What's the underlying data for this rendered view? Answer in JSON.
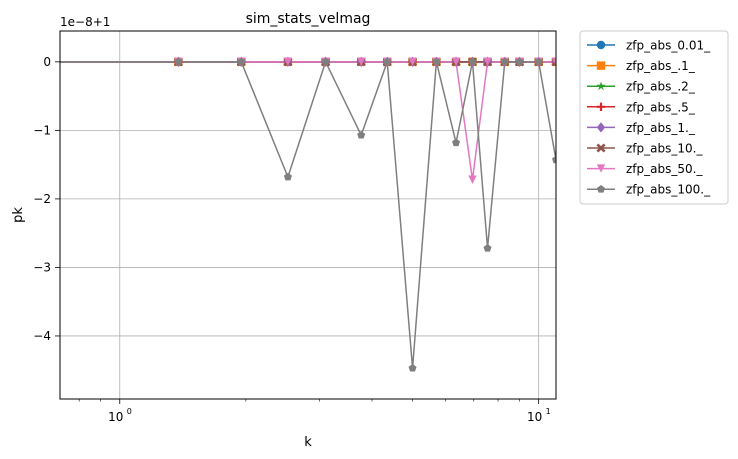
{
  "chart_data": {
    "type": "line",
    "title": "sim_stats_velmag",
    "xlabel": "k",
    "ylabel": "pk",
    "offset_label": "1e−8+1",
    "xscale": "log",
    "xlim": [
      0.72,
      11.0
    ],
    "ylim": [
      -4.92,
      0.45
    ],
    "grid": true,
    "legend_position": "outside-right",
    "x_ticks": [
      {
        "value": 1,
        "label": "10",
        "exp": "0"
      },
      {
        "value": 10,
        "label": "10",
        "exp": "1"
      }
    ],
    "y_ticks": [
      {
        "value": 0,
        "label": "0"
      },
      {
        "value": -1,
        "label": "−1"
      },
      {
        "value": -2,
        "label": "−2"
      },
      {
        "value": -3,
        "label": "−3"
      },
      {
        "value": -4,
        "label": "−4"
      }
    ],
    "x": [
      0.7,
      1.38,
      1.95,
      2.52,
      3.1,
      3.77,
      4.35,
      5.0,
      5.7,
      6.35,
      6.95,
      7.55,
      8.3,
      9.0,
      10.0,
      11.0
    ],
    "series": [
      {
        "name": "zfp_abs_0.01_",
        "color": "#1f77b4",
        "marker": "circle",
        "values": [
          0,
          0,
          0,
          0,
          0,
          0,
          0,
          0,
          0,
          0,
          0,
          0,
          0,
          0,
          0,
          0
        ]
      },
      {
        "name": "zfp_abs_.1_",
        "color": "#ff7f0e",
        "marker": "square",
        "values": [
          0,
          0,
          0,
          0,
          0,
          0,
          0,
          0,
          0,
          0,
          0,
          0,
          0,
          0,
          0,
          0
        ]
      },
      {
        "name": "zfp_abs_.2_",
        "color": "#2ca02c",
        "marker": "star",
        "values": [
          0,
          0,
          0,
          0,
          0,
          0,
          0,
          0,
          0,
          0,
          0,
          0,
          0,
          0,
          0,
          0
        ]
      },
      {
        "name": "zfp_abs_.5_",
        "color": "#d62728",
        "marker": "plus",
        "values": [
          0,
          0,
          0,
          0,
          0,
          0,
          0,
          0,
          0,
          0,
          0,
          0,
          0,
          0,
          0,
          0
        ]
      },
      {
        "name": "zfp_abs_1._",
        "color": "#9467bd",
        "marker": "diamond",
        "values": [
          0,
          0,
          0,
          0,
          0,
          0,
          0,
          0,
          0,
          0,
          0,
          0,
          0,
          0,
          0,
          0
        ]
      },
      {
        "name": "zfp_abs_10._",
        "color": "#8c564b",
        "marker": "x",
        "values": [
          0,
          0,
          0,
          0,
          0,
          0,
          0,
          0,
          0,
          0,
          0,
          0,
          0,
          0,
          0,
          0
        ]
      },
      {
        "name": "zfp_abs_50._",
        "color": "#e377c2",
        "marker": "triangle-down",
        "values": [
          0,
          0,
          0,
          0,
          0,
          0,
          0,
          0,
          0,
          0,
          -1.72,
          0,
          0,
          0,
          0,
          0
        ]
      },
      {
        "name": "zfp_abs_100._",
        "color": "#7f7f7f",
        "marker": "pentagon",
        "values": [
          0,
          0,
          0,
          -1.68,
          0,
          -1.07,
          0,
          -4.47,
          0,
          -1.18,
          0,
          -2.72,
          0,
          0,
          0,
          -1.43
        ]
      }
    ]
  }
}
